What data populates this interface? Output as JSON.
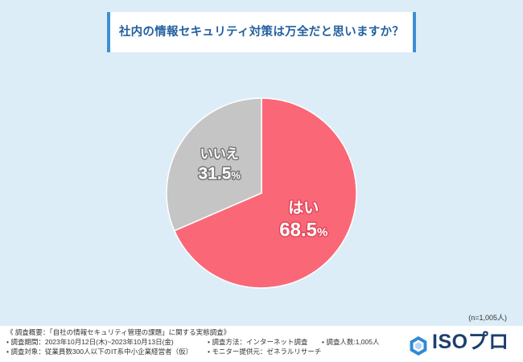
{
  "colors": {
    "background": "#dcedf8",
    "title_text": "#22609f",
    "title_accent": "#3d8fd4",
    "footer_background": "#ffffff",
    "logo": "#1d3f6e",
    "logo_icon": "#2f8ad6"
  },
  "chart_data": {
    "type": "pie",
    "title": "社内の情報セキュリティ対策は万全だと思いますか？",
    "categories": [
      "はい",
      "いいえ"
    ],
    "values": [
      68.5,
      31.5
    ],
    "unit": "%",
    "colors": [
      "#fa6878",
      "#c5c5c5"
    ],
    "note": "(n=1,005人)"
  },
  "footer": {
    "summary": "《 調査概要：「自社の情報セキュリティ管理の課題」に関する実態調査》",
    "period": "• 調査期間：2023年10月12日(木)~2023年10月13日(金)",
    "method": "• 調査方法：インターネット調査",
    "count": "• 調査人数:1,005人",
    "target": "• 調査対象：従業員数300人以下のIT系中小企業経営者（仮）",
    "monitor": "• モニター提供元：ゼネラルリサーチ"
  },
  "logo": {
    "icon": "hexagon-logo-icon",
    "text": "ISOプロ"
  }
}
